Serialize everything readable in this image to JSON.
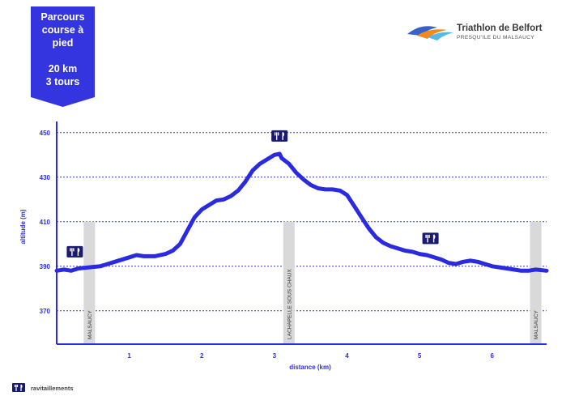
{
  "badge": {
    "line1": "Parcours",
    "line2": "course à",
    "line3": "pied",
    "line4": "20 km",
    "line5": "3 tours",
    "color": "#3535e0"
  },
  "logo": {
    "title": "Triathlon de Belfort",
    "subtitle": "PRESQU'ILE DU MALSAUCY"
  },
  "legend": {
    "label": "ravitaillements",
    "icon": "knife-fork-icon"
  },
  "chart_data": {
    "type": "line",
    "xlabel": "distance (km)",
    "ylabel": "altitude (m)",
    "xlim": [
      0,
      6.75
    ],
    "ylim": [
      355,
      455
    ],
    "xticks": [
      "1",
      "2",
      "3",
      "4",
      "5",
      "6"
    ],
    "yticks": [
      "450",
      "430",
      "410",
      "390",
      "370"
    ],
    "grid": "horizontal dashed",
    "line_color": "#2a2ae0",
    "series": [
      {
        "x": [
          0,
          0.1,
          0.2,
          0.3,
          0.45,
          0.6,
          0.8,
          1.0,
          1.1,
          1.2,
          1.35,
          1.5,
          1.6,
          1.7,
          1.8,
          1.9,
          2.0,
          2.1,
          2.2,
          2.3,
          2.4,
          2.5,
          2.6,
          2.7,
          2.8,
          2.9,
          3.0,
          3.07,
          3.1,
          3.2,
          3.3,
          3.4,
          3.5,
          3.6,
          3.7,
          3.8,
          3.9,
          4.0,
          4.1,
          4.2,
          4.3,
          4.4,
          4.5,
          4.6,
          4.7,
          4.8,
          4.9,
          5.0,
          5.1,
          5.2,
          5.3,
          5.4,
          5.5,
          5.6,
          5.7,
          5.8,
          5.9,
          6.0,
          6.1,
          6.2,
          6.3,
          6.4,
          6.5,
          6.6,
          6.75
        ],
        "y": [
          388,
          388.5,
          388,
          389,
          389.5,
          390,
          392,
          394,
          395,
          394.5,
          394.5,
          395.5,
          397,
          400,
          406,
          412,
          415.5,
          417.5,
          419.5,
          420,
          421.5,
          424,
          428,
          433,
          436,
          438,
          440,
          440.5,
          438.5,
          436,
          432,
          429,
          426.5,
          425,
          424.5,
          424.5,
          424,
          422,
          417,
          412,
          407,
          403,
          400.5,
          399,
          398,
          397,
          396.5,
          395.5,
          395,
          394,
          393,
          391.5,
          391,
          392,
          392.5,
          392,
          391,
          390,
          389.5,
          389,
          388.5,
          388,
          388,
          388.5,
          388
        ]
      }
    ],
    "place_labels": [
      {
        "text": "MALSAUCY",
        "x": 0.45
      },
      {
        "text": "LACHAPELLE SOUS CHAUX",
        "x": 3.2
      },
      {
        "text": "MALSAUCY",
        "x": 6.6
      }
    ],
    "ravitaillements_km": [
      0.25,
      3.07,
      5.15
    ]
  }
}
